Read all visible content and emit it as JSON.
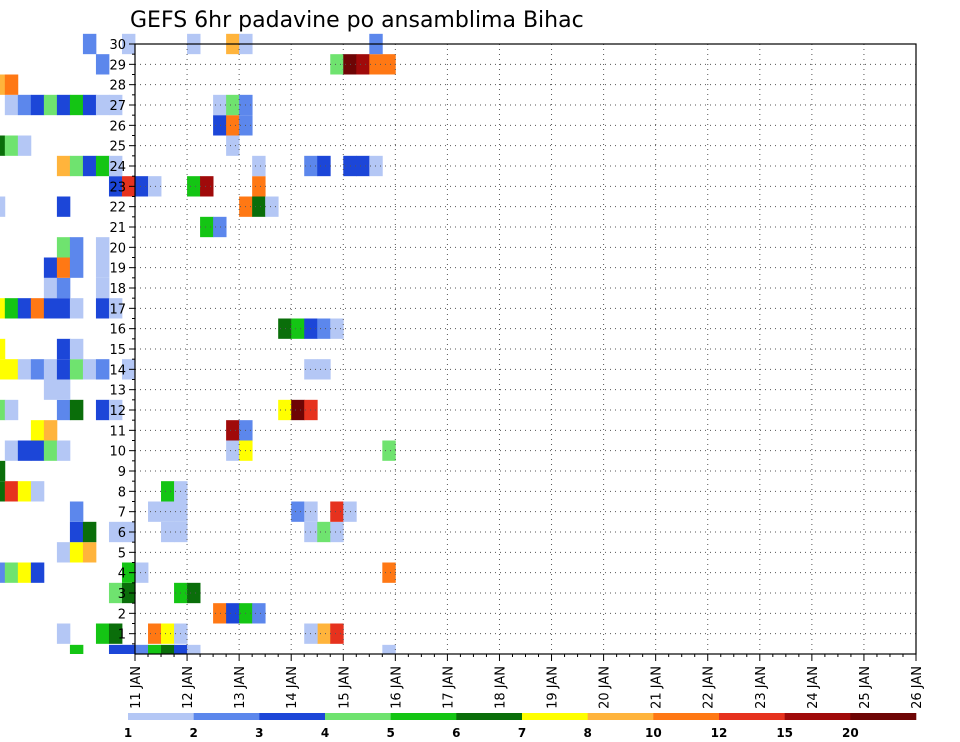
{
  "chart_data": {
    "type": "heatmap",
    "title": "GEFS 6hr padavine po ansamblima Bihac",
    "xlabel": "",
    "ylabel": "",
    "x_tick_labels": [
      "11 JAN",
      "12 JAN",
      "13 JAN",
      "14 JAN",
      "15 JAN",
      "16 JAN",
      "17 JAN",
      "18 JAN",
      "19 JAN",
      "20 JAN",
      "21 JAN",
      "22 JAN",
      "23 JAN",
      "24 JAN",
      "25 JAN",
      "26 JAN"
    ],
    "xlim_days": [
      11,
      26
    ],
    "steps_per_day": 4,
    "y_tick_labels": [
      "1",
      "2",
      "3",
      "4",
      "5",
      "6",
      "7",
      "8",
      "9",
      "10",
      "11",
      "12",
      "13",
      "14",
      "15",
      "16",
      "17",
      "18",
      "19",
      "20",
      "21",
      "22",
      "23",
      "24",
      "25",
      "26",
      "27",
      "28",
      "29",
      "30"
    ],
    "ylim": [
      0,
      30
    ],
    "grid": true,
    "legend_labels": [
      "1",
      "2",
      "3",
      "4",
      "5",
      "6",
      "7",
      "8",
      "10",
      "12",
      "15",
      "20"
    ],
    "legend_placement": "bottom",
    "level_colors": [
      "#b4c7f5",
      "#5c87ec",
      "#1c46d8",
      "#6fe36f",
      "#14c514",
      "#0a6e0a",
      "#ffff00",
      "#ffb43c",
      "#ff7814",
      "#e6321e",
      "#a00a0a",
      "#6e0505"
    ],
    "cells": [
      [
        0,
        4.5,
        0
      ],
      [
        0,
        4.75,
        1
      ],
      [
        0,
        9.75,
        4
      ],
      [
        0,
        10.5,
        2
      ],
      [
        0,
        10.75,
        2
      ],
      [
        0,
        11,
        1
      ],
      [
        0,
        11.25,
        4
      ],
      [
        0,
        11.5,
        5
      ],
      [
        0,
        11.75,
        2
      ],
      [
        0,
        12,
        0
      ],
      [
        0,
        15.75,
        0
      ],
      [
        1,
        5.25,
        2
      ],
      [
        1,
        9.5,
        0
      ],
      [
        1,
        10.25,
        4
      ],
      [
        1,
        10.5,
        5
      ],
      [
        1,
        11.25,
        8
      ],
      [
        1,
        11.5,
        6
      ],
      [
        1,
        11.75,
        0
      ],
      [
        1,
        14.5,
        7
      ],
      [
        1,
        14.75,
        9
      ],
      [
        1,
        14.25,
        0
      ],
      [
        2,
        12.5,
        8
      ],
      [
        2,
        12.75,
        2
      ],
      [
        2,
        13,
        4
      ],
      [
        2,
        13.25,
        1
      ],
      [
        3,
        4.75,
        0
      ],
      [
        3,
        5,
        0
      ],
      [
        3,
        10.5,
        3
      ],
      [
        3,
        10.75,
        5
      ],
      [
        3,
        11.75,
        4
      ],
      [
        3,
        12,
        5
      ],
      [
        4,
        7.5,
        1
      ],
      [
        4,
        7.75,
        2
      ],
      [
        4,
        8.25,
        1
      ],
      [
        4,
        8.5,
        3
      ],
      [
        4,
        8.75,
        6
      ],
      [
        4,
        9,
        2
      ],
      [
        4,
        10.75,
        4
      ],
      [
        4,
        11,
        0
      ],
      [
        4,
        15.75,
        8
      ],
      [
        5,
        9.5,
        0
      ],
      [
        5,
        9.75,
        6
      ],
      [
        5,
        10,
        7
      ],
      [
        6,
        4.25,
        0
      ],
      [
        6,
        5,
        0
      ],
      [
        6,
        5.25,
        8
      ],
      [
        6,
        5.5,
        3
      ],
      [
        6,
        9.75,
        2
      ],
      [
        6,
        10,
        5
      ],
      [
        6,
        10.5,
        0
      ],
      [
        6,
        10.75,
        0
      ],
      [
        6,
        11.5,
        0
      ],
      [
        6,
        11.75,
        0
      ],
      [
        6,
        14.25,
        0
      ],
      [
        6,
        14.5,
        3
      ],
      [
        6,
        14.75,
        0
      ],
      [
        7,
        5,
        0
      ],
      [
        7,
        9.75,
        1
      ],
      [
        7,
        11.25,
        0
      ],
      [
        7,
        11.5,
        0
      ],
      [
        7,
        11.75,
        0
      ],
      [
        7,
        14,
        1
      ],
      [
        7,
        14.25,
        0
      ],
      [
        7,
        14.75,
        9
      ],
      [
        7,
        15,
        0
      ],
      [
        8,
        4.75,
        0
      ],
      [
        8,
        8,
        2
      ],
      [
        8,
        8.25,
        5
      ],
      [
        8,
        8.5,
        9
      ],
      [
        8,
        8.75,
        6
      ],
      [
        8,
        9,
        0
      ],
      [
        8,
        11.5,
        4
      ],
      [
        8,
        11.75,
        0
      ],
      [
        9,
        7.75,
        1
      ],
      [
        9,
        8,
        8
      ],
      [
        9,
        8.25,
        5
      ],
      [
        9,
        5,
        3
      ],
      [
        9,
        5.25,
        1
      ],
      [
        10,
        4.75,
        1
      ],
      [
        10,
        5,
        2
      ],
      [
        10,
        8.5,
        0
      ],
      [
        10,
        8.75,
        2
      ],
      [
        10,
        9,
        2
      ],
      [
        10,
        9.25,
        3
      ],
      [
        10,
        9.5,
        0
      ],
      [
        10,
        12.75,
        0
      ],
      [
        10,
        13,
        6
      ],
      [
        10,
        15.75,
        3
      ],
      [
        11,
        9,
        6
      ],
      [
        11,
        9.25,
        7
      ],
      [
        11,
        12.75,
        10
      ],
      [
        11,
        13,
        1
      ],
      [
        12,
        4.75,
        0
      ],
      [
        12,
        7.25,
        0
      ],
      [
        12,
        7.5,
        4
      ],
      [
        12,
        7.75,
        1
      ],
      [
        12,
        8,
        6
      ],
      [
        12,
        8.25,
        3
      ],
      [
        12,
        8.5,
        0
      ],
      [
        12,
        9.5,
        1
      ],
      [
        12,
        9.75,
        5
      ],
      [
        12,
        10.25,
        2
      ],
      [
        12,
        10.5,
        0
      ],
      [
        12,
        13.75,
        6
      ],
      [
        12,
        14,
        11
      ],
      [
        12,
        14.25,
        9
      ],
      [
        13,
        4.75,
        0
      ],
      [
        13,
        7,
        3
      ],
      [
        13,
        7.5,
        0
      ],
      [
        13,
        7.75,
        0
      ],
      [
        13,
        8,
        0
      ],
      [
        13,
        9.25,
        0
      ],
      [
        13,
        9.5,
        0
      ],
      [
        14,
        4.75,
        1
      ],
      [
        14,
        6.75,
        0
      ],
      [
        14,
        7,
        3
      ],
      [
        14,
        7.25,
        3
      ],
      [
        14,
        7.5,
        1
      ],
      [
        14,
        7.75,
        3
      ],
      [
        14,
        8,
        7
      ],
      [
        14,
        8.25,
        6
      ],
      [
        14,
        8.5,
        6
      ],
      [
        14,
        8.75,
        0
      ],
      [
        14,
        9,
        1
      ],
      [
        14,
        9.25,
        0
      ],
      [
        14,
        9.5,
        2
      ],
      [
        14,
        9.75,
        3
      ],
      [
        14,
        10,
        0
      ],
      [
        14,
        10.25,
        1
      ],
      [
        14,
        10.75,
        0
      ],
      [
        14,
        14.25,
        0
      ],
      [
        14,
        14.5,
        0
      ],
      [
        15,
        5.75,
        4
      ],
      [
        15,
        6,
        2
      ],
      [
        15,
        6.75,
        1
      ],
      [
        15,
        7,
        3
      ],
      [
        15,
        7.25,
        3
      ],
      [
        15,
        7.5,
        1
      ],
      [
        15,
        7.75,
        9
      ],
      [
        15,
        8,
        6
      ],
      [
        15,
        8.25,
        6
      ],
      [
        15,
        9.5,
        2
      ],
      [
        15,
        9.75,
        0
      ],
      [
        16,
        4.75,
        0
      ],
      [
        16,
        5,
        6
      ],
      [
        16,
        6.75,
        1
      ],
      [
        16,
        7,
        3
      ],
      [
        16,
        7.25,
        3
      ],
      [
        16,
        7.5,
        0
      ],
      [
        16,
        7.75,
        9
      ],
      [
        16,
        8,
        7
      ],
      [
        16,
        13.75,
        5
      ],
      [
        16,
        14,
        4
      ],
      [
        16,
        14.25,
        2
      ],
      [
        16,
        14.5,
        1
      ],
      [
        16,
        14.75,
        0
      ],
      [
        17,
        5,
        0
      ],
      [
        17,
        7.75,
        0
      ],
      [
        17,
        8,
        6
      ],
      [
        17,
        8.25,
        6
      ],
      [
        17,
        8.5,
        4
      ],
      [
        17,
        8.75,
        2
      ],
      [
        17,
        9,
        8
      ],
      [
        17,
        9.25,
        2
      ],
      [
        17,
        9.5,
        2
      ],
      [
        17,
        9.75,
        0
      ],
      [
        17,
        10.25,
        2
      ],
      [
        17,
        10.5,
        0
      ],
      [
        18,
        6.25,
        0
      ],
      [
        18,
        6.5,
        1
      ],
      [
        18,
        6.75,
        1
      ],
      [
        18,
        7,
        2
      ],
      [
        18,
        7.25,
        0
      ],
      [
        18,
        7.5,
        1
      ],
      [
        18,
        7.75,
        2
      ],
      [
        18,
        9.25,
        0
      ],
      [
        18,
        9.5,
        1
      ],
      [
        18,
        10.25,
        0
      ],
      [
        19,
        4.5,
        0
      ],
      [
        19,
        4.75,
        1
      ],
      [
        19,
        6.25,
        0
      ],
      [
        19,
        6.5,
        0
      ],
      [
        19,
        6.75,
        1
      ],
      [
        19,
        7.5,
        1
      ],
      [
        19,
        7.75,
        2
      ],
      [
        19,
        8,
        2
      ],
      [
        19,
        9.25,
        2
      ],
      [
        19,
        9.5,
        8
      ],
      [
        19,
        9.75,
        1
      ],
      [
        19,
        10.25,
        0
      ],
      [
        20,
        4.25,
        0
      ],
      [
        20,
        4.5,
        1
      ],
      [
        20,
        4.75,
        3
      ],
      [
        20,
        5,
        0
      ],
      [
        20,
        9.5,
        3
      ],
      [
        20,
        9.75,
        1
      ],
      [
        20,
        10.25,
        0
      ],
      [
        21,
        5.5,
        0
      ],
      [
        21,
        5.75,
        4
      ],
      [
        21,
        7.75,
        5
      ],
      [
        21,
        8,
        0
      ],
      [
        21,
        12.25,
        4
      ],
      [
        21,
        12.5,
        1
      ],
      [
        22,
        5.25,
        0
      ],
      [
        22,
        8.25,
        0
      ],
      [
        22,
        9.5,
        2
      ],
      [
        22,
        13,
        8
      ],
      [
        22,
        13.25,
        5
      ],
      [
        22,
        13.5,
        0
      ],
      [
        23,
        4.75,
        1
      ],
      [
        23,
        5,
        2
      ],
      [
        23,
        7.5,
        2
      ],
      [
        23,
        7.75,
        0
      ],
      [
        23,
        10.5,
        2
      ],
      [
        23,
        10.75,
        9
      ],
      [
        23,
        11,
        2
      ],
      [
        23,
        11.25,
        0
      ],
      [
        23,
        12,
        4
      ],
      [
        23,
        12.25,
        10
      ],
      [
        23,
        13.25,
        8
      ],
      [
        24,
        9.5,
        7
      ],
      [
        24,
        9.75,
        3
      ],
      [
        24,
        10,
        2
      ],
      [
        24,
        10.25,
        4
      ],
      [
        24,
        10.5,
        0
      ],
      [
        24,
        13.25,
        0
      ],
      [
        24,
        14.25,
        1
      ],
      [
        24,
        14.5,
        2
      ],
      [
        24,
        15,
        2
      ],
      [
        24,
        15.25,
        2
      ],
      [
        24,
        15.5,
        0
      ],
      [
        25,
        7.75,
        1
      ],
      [
        25,
        8,
        5
      ],
      [
        25,
        8.25,
        5
      ],
      [
        25,
        8.5,
        3
      ],
      [
        25,
        8.75,
        0
      ],
      [
        25,
        12.75,
        0
      ],
      [
        26,
        6.5,
        2
      ],
      [
        26,
        12.5,
        2
      ],
      [
        26,
        12.75,
        8
      ],
      [
        26,
        13,
        1
      ],
      [
        27,
        8.5,
        0
      ],
      [
        27,
        8.75,
        1
      ],
      [
        27,
        9,
        2
      ],
      [
        27,
        9.25,
        3
      ],
      [
        27,
        9.5,
        2
      ],
      [
        27,
        9.75,
        4
      ],
      [
        27,
        10,
        2
      ],
      [
        27,
        10.25,
        0
      ],
      [
        27,
        10.5,
        0
      ],
      [
        27,
        12.5,
        0
      ],
      [
        27,
        12.75,
        3
      ],
      [
        27,
        13,
        1
      ],
      [
        28,
        3.75,
        1
      ],
      [
        28,
        4,
        0
      ],
      [
        28,
        4.25,
        0
      ],
      [
        28,
        6.25,
        0
      ],
      [
        28,
        6.5,
        0
      ],
      [
        28,
        7.25,
        0
      ],
      [
        28,
        7.75,
        1
      ],
      [
        28,
        8,
        1
      ],
      [
        28,
        8.25,
        7
      ],
      [
        28,
        8.5,
        8
      ],
      [
        29,
        5,
        2
      ],
      [
        29,
        5.25,
        4
      ],
      [
        29,
        10.25,
        1
      ],
      [
        29,
        14.75,
        3
      ],
      [
        29,
        15,
        11
      ],
      [
        29,
        15.25,
        10
      ],
      [
        29,
        15.5,
        8
      ],
      [
        29,
        15.75,
        8
      ],
      [
        30,
        4.5,
        0
      ],
      [
        30,
        4.75,
        7
      ],
      [
        30,
        10,
        1
      ],
      [
        30,
        10.75,
        0
      ],
      [
        30,
        12,
        0
      ],
      [
        30,
        12.75,
        7
      ],
      [
        30,
        13,
        0
      ],
      [
        30,
        15.5,
        1
      ]
    ]
  }
}
